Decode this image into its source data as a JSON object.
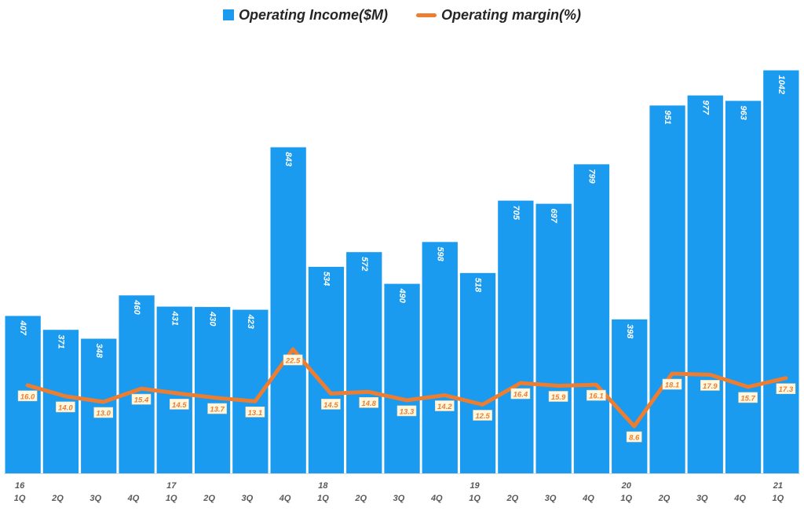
{
  "chart_data": {
    "type": "bar",
    "title": "",
    "xlabel": "",
    "ylabel": "",
    "legend_position": "top-center",
    "categories": [
      "16 1Q",
      "2Q",
      "3Q",
      "4Q",
      "17 1Q",
      "2Q",
      "3Q",
      "4Q",
      "18 1Q",
      "2Q",
      "3Q",
      "4Q",
      "19 1Q",
      "2Q",
      "3Q",
      "4Q",
      "20 1Q",
      "2Q",
      "3Q",
      "4Q",
      "21 1Q"
    ],
    "year_labels": [
      "16",
      "",
      "",
      "",
      "17",
      "",
      "",
      "",
      "18",
      "",
      "",
      "",
      "19",
      "",
      "",
      "",
      "20",
      "",
      "",
      "",
      "21"
    ],
    "quarter_labels": [
      "1Q",
      "2Q",
      "3Q",
      "4Q",
      "1Q",
      "2Q",
      "3Q",
      "4Q",
      "1Q",
      "2Q",
      "3Q",
      "4Q",
      "1Q",
      "2Q",
      "3Q",
      "4Q",
      "1Q",
      "2Q",
      "3Q",
      "4Q",
      "1Q"
    ],
    "series": [
      {
        "name": "Operating Income($M)",
        "type": "bar",
        "color": "#1a9bf0",
        "values": [
          407,
          371,
          348,
          460,
          431,
          430,
          423,
          843,
          534,
          572,
          490,
          598,
          518,
          705,
          697,
          799,
          398,
          951,
          977,
          963,
          1042
        ],
        "labels": [
          "407",
          "371",
          "348",
          "460",
          "431",
          "430",
          "423",
          "843",
          "534",
          "572",
          "490",
          "598",
          "518",
          "705",
          "697",
          "799",
          "398",
          "951",
          "977",
          "963",
          "1042"
        ]
      },
      {
        "name": "Operating margin(%)",
        "type": "line",
        "color": "#ed7d31",
        "values": [
          16.0,
          14.0,
          13.0,
          15.4,
          14.5,
          13.7,
          13.1,
          22.5,
          14.5,
          14.8,
          13.3,
          14.2,
          12.5,
          16.4,
          15.9,
          16.1,
          8.6,
          18.1,
          17.9,
          15.7,
          17.3
        ],
        "labels": [
          "16.0",
          "14.0",
          "13.0",
          "15.4",
          "14.5",
          "13.7",
          "13.1",
          "22.5",
          "14.5",
          "14.8",
          "13.3",
          "14.2",
          "12.5",
          "16.4",
          "15.9",
          "16.1",
          "8.6",
          "18.1",
          "17.9",
          "15.7",
          "17.3"
        ]
      }
    ],
    "y_left_range": [
      0,
      1100
    ],
    "y_right_range": [
      -40,
      40
    ]
  }
}
